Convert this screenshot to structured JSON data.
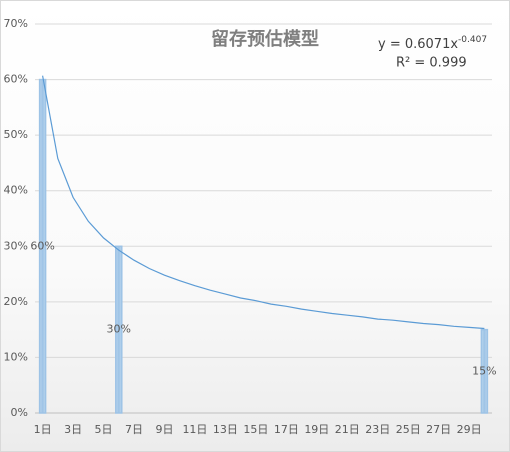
{
  "chart_data": {
    "type": "bar",
    "title": "留存预估模型",
    "equation": {
      "base": "y = 0.6071x",
      "exponent": "-0.407"
    },
    "r_squared": "R² = 0.999",
    "categories": [
      "1日",
      null,
      "3日",
      null,
      "5日",
      null,
      "7日",
      null,
      "9日",
      null,
      "11日",
      null,
      "13日",
      null,
      "15日",
      null,
      "17日",
      null,
      "19日",
      null,
      "21日",
      null,
      "23日",
      null,
      "25日",
      null,
      "27日",
      null,
      "29日",
      null
    ],
    "series": [
      {
        "type": "bar",
        "color": "#9dc3e6",
        "values": [
          60,
          null,
          null,
          null,
          null,
          30,
          null,
          null,
          null,
          null,
          null,
          null,
          null,
          null,
          null,
          null,
          null,
          null,
          null,
          null,
          null,
          null,
          null,
          null,
          null,
          null,
          null,
          null,
          null,
          15
        ],
        "value_labels": [
          "60%",
          null,
          null,
          null,
          null,
          "30%",
          null,
          null,
          null,
          null,
          null,
          null,
          null,
          null,
          null,
          null,
          null,
          null,
          null,
          null,
          null,
          null,
          null,
          null,
          null,
          null,
          null,
          null,
          null,
          "15%"
        ]
      },
      {
        "type": "line",
        "color": "#5b9bd5",
        "values": [
          60.7,
          45.8,
          38.8,
          34.5,
          31.5,
          29.3,
          27.5,
          26.0,
          24.8,
          23.8,
          22.9,
          22.1,
          21.4,
          20.7,
          20.2,
          19.6,
          19.2,
          18.7,
          18.3,
          17.9,
          17.6,
          17.3,
          16.9,
          16.7,
          16.4,
          16.1,
          15.9,
          15.6,
          15.4,
          15.2
        ]
      }
    ],
    "ylim": [
      0,
      70
    ],
    "yticks": [
      {
        "value": 0,
        "label": "0%"
      },
      {
        "value": 10,
        "label": "10%"
      },
      {
        "value": 20,
        "label": "20%"
      },
      {
        "value": 30,
        "label": "30%"
      },
      {
        "value": 40,
        "label": "40%"
      },
      {
        "value": 50,
        "label": "50%"
      },
      {
        "value": 60,
        "label": "60%"
      },
      {
        "value": 70,
        "label": "70%"
      }
    ],
    "grid": true
  }
}
